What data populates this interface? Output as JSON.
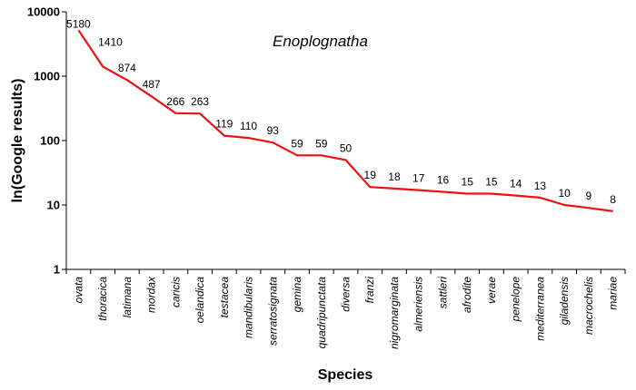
{
  "chart_data": {
    "type": "line",
    "title": "Enoplognatha",
    "xlabel": "Species",
    "ylabel": "ln(Google results)",
    "y_scale": "log",
    "ylim": [
      1,
      10000
    ],
    "y_ticks": [
      "1",
      "10",
      "100",
      "1000",
      "10000"
    ],
    "grid": false,
    "legend": "none",
    "line_color": "#ee1111",
    "categories": [
      "ovata",
      "thoracica",
      "latimana",
      "mordax",
      "caricis",
      "oelandica",
      "testacea",
      "mandibularis",
      "serratosignata",
      "gemina",
      "quadripunctata",
      "diversa",
      "franzi",
      "nigromarginata",
      "almeriensis",
      "sattleri",
      "afrodite",
      "verae",
      "penelope",
      "mediterranea",
      "giladensis",
      "macrochelis",
      "mariae"
    ],
    "values": [
      5180,
      1410,
      874,
      487,
      266,
      263,
      119,
      110,
      93,
      59,
      59,
      50,
      19,
      18,
      17,
      16,
      15,
      15,
      14,
      13,
      10,
      9,
      8
    ]
  }
}
